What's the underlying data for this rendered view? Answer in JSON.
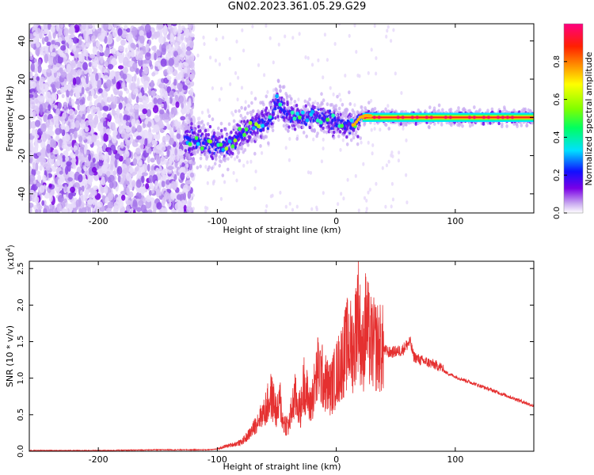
{
  "figure": {
    "title": "GN02.2023.361.05.29.G29"
  },
  "chart_data": [
    {
      "type": "heatmap",
      "title": "",
      "xlabel": "Height of straight line (km)",
      "ylabel": "Frequency (Hz)",
      "xlim": [
        -258,
        166
      ],
      "ylim": [
        -50,
        49
      ],
      "x_ticks": [
        -200,
        -100,
        0,
        100
      ],
      "y_ticks": [
        -40,
        -20,
        0,
        20,
        40
      ],
      "grid": false,
      "ridge": {
        "x": [
          -125,
          -115,
          -105,
          -95,
          -88,
          -80,
          -72,
          -65,
          -58,
          -53,
          -50,
          -45,
          -40,
          -30,
          -20,
          -10,
          0,
          8,
          15,
          20,
          25,
          40,
          60,
          80,
          100,
          120,
          140,
          165
        ],
        "y": [
          -12,
          -13,
          -14,
          -15,
          -13,
          -9,
          -5,
          -4,
          -2,
          1,
          8,
          4,
          1,
          0,
          1,
          0,
          -2,
          -4,
          -4,
          0,
          1,
          0,
          0,
          0,
          0,
          0,
          0,
          0
        ]
      },
      "colorbar": {
        "label": "Normalized spectral amplitude",
        "range": [
          0.0,
          1.0
        ],
        "ticks": [
          "0.0",
          "0.2",
          "0.4",
          "0.6",
          "0.8"
        ]
      }
    },
    {
      "type": "line",
      "title": "",
      "xlabel": "Height of straight line (km)",
      "ylabel": "SNR (10 * v/v)",
      "multiplier": "(x10",
      "multiplier_exp": "4",
      "multiplier_close": ")",
      "xlim": [
        -258,
        166
      ],
      "ylim": [
        0,
        2.6
      ],
      "x_ticks": [
        -200,
        -100,
        0,
        100
      ],
      "y_ticks": [
        "0.0",
        "0.5",
        "1.0",
        "1.5",
        "2.0",
        "2.5"
      ],
      "grid": false,
      "series": [
        {
          "name": "",
          "color": "#e53030",
          "x": [
            -258,
            -200,
            -150,
            -110,
            -100,
            -95,
            -90,
            -80,
            -75,
            -70,
            -65,
            -60,
            -55,
            -52,
            -50,
            -47,
            -45,
            -40,
            -35,
            -30,
            -27,
            -22,
            -18,
            -15,
            -10,
            -5,
            0,
            5,
            10,
            15,
            18,
            22,
            25,
            28,
            32,
            38,
            45,
            55,
            62,
            65,
            70,
            80,
            88,
            92,
            100,
            120,
            140,
            166
          ],
          "y": [
            0.01,
            0.01,
            0.02,
            0.02,
            0.03,
            0.06,
            0.08,
            0.12,
            0.2,
            0.3,
            0.45,
            0.55,
            0.75,
            0.65,
            0.5,
            0.7,
            0.4,
            0.35,
            0.75,
            0.55,
            0.95,
            0.6,
            0.9,
            1.15,
            0.95,
            0.85,
            1.05,
            1.25,
            1.5,
            1.4,
            2.0,
            1.3,
            1.8,
            1.5,
            1.45,
            1.4,
            1.35,
            1.38,
            1.5,
            1.3,
            1.25,
            1.2,
            1.15,
            1.08,
            1.02,
            0.9,
            0.78,
            0.62
          ]
        }
      ]
    }
  ]
}
